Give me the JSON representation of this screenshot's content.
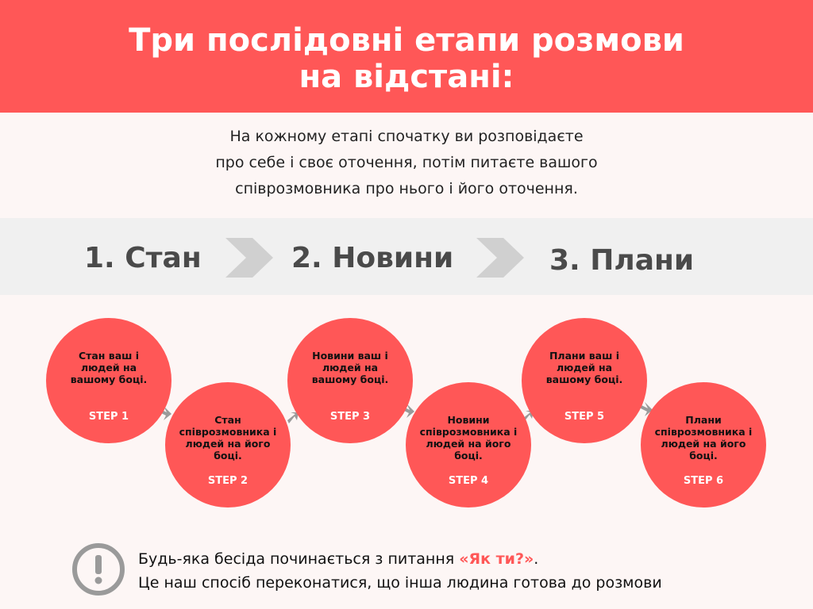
{
  "header": {
    "title": [
      "Три послідовні етапи розмови",
      "на відстані:"
    ]
  },
  "intro": [
    "На кожному етапі спочатку ви розповідаєте",
    "про себе і своє оточення, потім питаєте вашого",
    "співрозмовника про нього і його оточення."
  ],
  "stages": [
    "1. Стан",
    "2. Новини",
    "3. Плани"
  ],
  "steps": [
    {
      "text": "Стан ваш і людей на вашому боці.",
      "label": "STEP 1"
    },
    {
      "text": "Стан співрозмовника і людей на його боці.",
      "label": "STEP 2"
    },
    {
      "text": "Новини ваш і людей на вашому боці.",
      "label": "STEP 3"
    },
    {
      "text": "Новини співрозмовника і людей на його боці.",
      "label": "STEP 4"
    },
    {
      "text": "Плани ваш і людей на вашому боці.",
      "label": "STEP 5"
    },
    {
      "text": "Плани співрозмовника і людей на його боці.",
      "label": "STEP 6"
    }
  ],
  "footer": {
    "line1": "Будь-яка бесіда починається з питання ",
    "highlight": "«Як ти?»",
    "line1_end": ".",
    "line2": "Це наш спосіб переконатися, що інша людина готова до розмови"
  }
}
